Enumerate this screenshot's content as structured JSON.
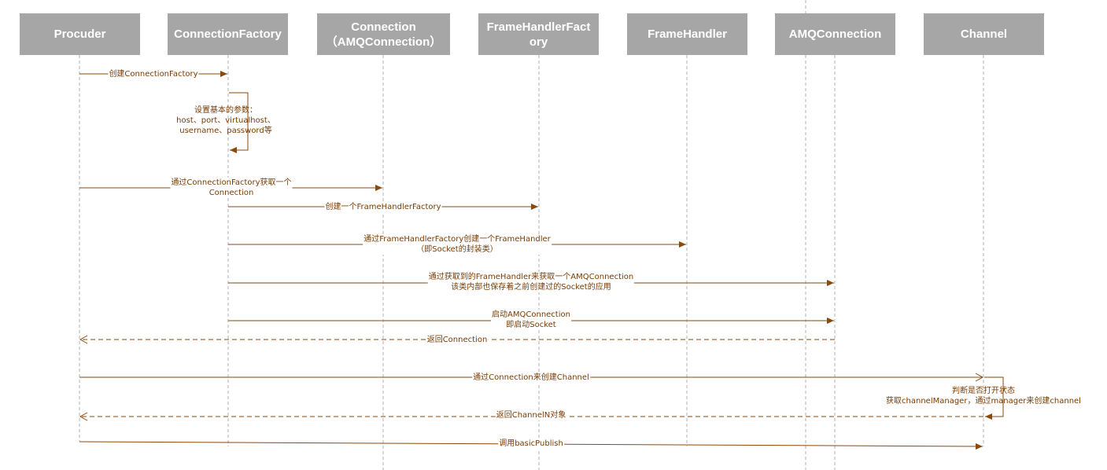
{
  "participants": [
    {
      "id": "procuder",
      "lines": [
        "Procuder"
      ]
    },
    {
      "id": "connection-factory",
      "lines": [
        "ConnectionFactory"
      ]
    },
    {
      "id": "connection",
      "lines": [
        "Connection",
        "（AMQConnection）"
      ]
    },
    {
      "id": "frame-handler-factory",
      "lines": [
        "FrameHandlerFact",
        "ory"
      ]
    },
    {
      "id": "frame-handler",
      "lines": [
        "FrameHandler"
      ]
    },
    {
      "id": "amq-connection",
      "lines": [
        "AMQConnection"
      ]
    },
    {
      "id": "channel",
      "lines": [
        "Channel"
      ]
    }
  ],
  "messages": {
    "create_factory": [
      "创建ConnectionFactory"
    ],
    "set_params": [
      "设置基本的参数：",
      "host、port、virtualhost、",
      "username、password等"
    ],
    "get_connection": [
      "通过ConnectionFactory获取一个",
      "Connection"
    ],
    "create_fh_factory": [
      "创建一个FrameHandlerFactory"
    ],
    "create_frame_handler": [
      "通过FrameHandlerFactory创建一个FrameHandler",
      "（即Socket的封装类）"
    ],
    "get_amq_connection": [
      "通过获取到的FrameHandler来获取一个AMQConnection",
      "该类内部也保存着之前创建过的Socket的应用"
    ],
    "start_amq": [
      "启动AMQConnection",
      "即启动Socket"
    ],
    "return_connection": [
      "返回Connection"
    ],
    "create_channel": [
      "通过Connection来创建Channel"
    ],
    "channel_note": [
      "判断是否打开状态",
      "获取channelManager，通过manager来创建channel"
    ],
    "return_channel": [
      "返回ChannelN对象"
    ],
    "basic_publish": [
      "调用basicPublish"
    ]
  },
  "colors": {
    "arrow": "#8b4a0c",
    "lifeline": "#b0b0b0",
    "header_bg": "#a6a6a6",
    "header_text": "#ffffff",
    "label_text": "#7a3b00"
  }
}
